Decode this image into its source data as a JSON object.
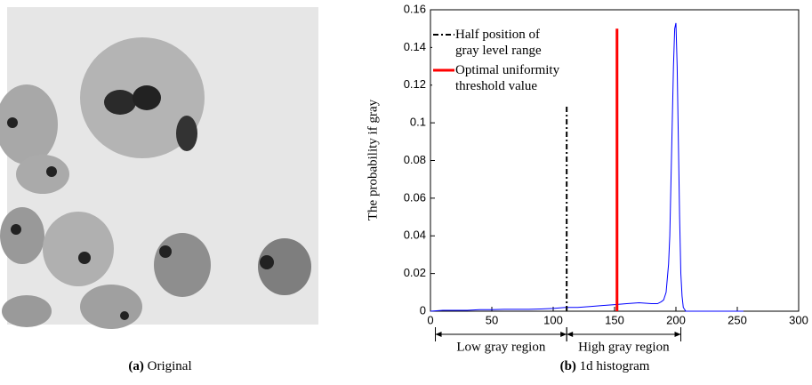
{
  "captions": [
    {
      "label": "(a)",
      "text": "Original"
    },
    {
      "label": "(b)",
      "text": "1d histogram"
    }
  ],
  "chart_data": {
    "type": "line",
    "y_label": "The probability if gray",
    "xlim": [
      0,
      300
    ],
    "xticks": [
      0,
      50,
      100,
      150,
      200,
      250,
      300
    ],
    "ylim": [
      0,
      0.16
    ],
    "yticks": [
      0,
      0.02,
      0.04,
      0.06,
      0.08,
      0.1,
      0.12,
      0.14,
      0.16
    ],
    "series": [
      {
        "color": "#0000ff",
        "x": [
          0,
          10,
          20,
          30,
          40,
          50,
          60,
          70,
          80,
          90,
          100,
          110,
          120,
          130,
          140,
          150,
          160,
          170,
          180,
          185,
          188,
          190,
          192,
          194,
          195,
          196,
          197,
          198,
          199,
          200,
          201,
          202,
          203,
          204,
          205,
          206,
          208,
          210,
          220,
          230,
          240,
          250,
          255
        ],
        "values": [
          0,
          0.0005,
          0.0005,
          0.0005,
          0.0008,
          0.0008,
          0.001,
          0.001,
          0.001,
          0.0012,
          0.0015,
          0.002,
          0.002,
          0.0025,
          0.003,
          0.0035,
          0.004,
          0.0045,
          0.004,
          0.004,
          0.005,
          0.006,
          0.01,
          0.025,
          0.04,
          0.07,
          0.1,
          0.13,
          0.15,
          0.153,
          0.13,
          0.09,
          0.05,
          0.02,
          0.008,
          0.002,
          0,
          0,
          0,
          0,
          0,
          0,
          0
        ]
      }
    ],
    "reference_lines": [
      {
        "name": "Half position of\ngray level range",
        "color": "#000000",
        "style": "dashdot",
        "x": 111,
        "y_end": 0.11
      },
      {
        "name": "Optimal uniformity\nthreshold value",
        "color": "#ff0000",
        "style": "solid",
        "x": 152,
        "y_end": 0.15
      }
    ],
    "regions": [
      {
        "label": "Low gray region",
        "start": 4,
        "end": 111
      },
      {
        "label": "High gray region",
        "start": 111,
        "end": 204
      }
    ]
  }
}
